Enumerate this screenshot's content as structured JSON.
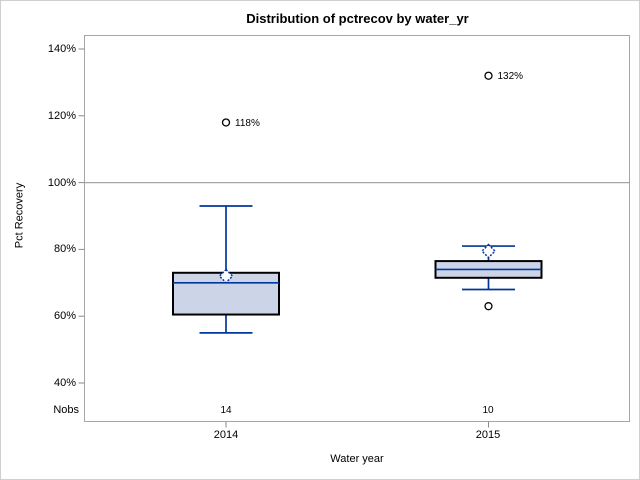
{
  "figure_title": "Distribution of pctrecov by water_yr",
  "colors": {
    "box_fill": "#ccd5e8",
    "box_border": "#000000",
    "line_blue": "#00379c",
    "frame_gray": "#a6a6a6",
    "tick_gray": "#8a8a8a",
    "outlier_stroke": "#000000",
    "background": "#ffffff"
  },
  "chart_data": {
    "type": "box",
    "title": "Distribution of pctrecov by water_yr",
    "xlabel": "Water year",
    "ylabel": "Pct Recovery",
    "nobs_label": "Nobs",
    "ylim": [
      40,
      140
    ],
    "yticks": [
      40,
      60,
      80,
      100,
      120,
      140
    ],
    "ytick_labels": [
      "40%",
      "60%",
      "80%",
      "100%",
      "120%",
      "140%"
    ],
    "reference_line": 100,
    "grid": false,
    "legend": "none",
    "categories": [
      "2014",
      "2015"
    ],
    "series": [
      {
        "category": "2014",
        "nobs": "14",
        "whisker_low": 55,
        "q1": 60.5,
        "median": 70,
        "q3": 73,
        "whisker_high": 93,
        "mean": 72,
        "outliers": [
          {
            "value": 118,
            "label": "118%"
          }
        ]
      },
      {
        "category": "2015",
        "nobs": "10",
        "whisker_low": 68,
        "q1": 71.5,
        "median": 74,
        "q3": 76.5,
        "whisker_high": 81,
        "mean": 79.5,
        "outliers": [
          {
            "value": 132,
            "label": "132%"
          },
          {
            "value": 63,
            "label": ""
          }
        ]
      }
    ]
  }
}
